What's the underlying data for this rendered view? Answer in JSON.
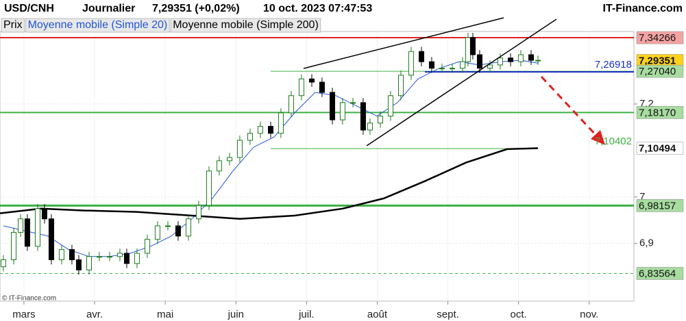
{
  "chart_data": {
    "type": "candlestick",
    "title": "USD/CNH",
    "period": "Journalier",
    "last_quote": "7,29351 (+0,02%)",
    "timestamp": "10 oct. 2023 07:47:53",
    "brand": "IT-Finance.com",
    "copyright": "© IT-Finance.com",
    "price_name": "Prix",
    "up_color": "#1a7a1a",
    "down_color": "#000000",
    "xlim": [
      2.661,
      11.633
    ],
    "xticks": [
      {
        "value": 3,
        "label": "mars"
      },
      {
        "value": 4,
        "label": "avr."
      },
      {
        "value": 5,
        "label": "mai"
      },
      {
        "value": 6,
        "label": "juin"
      },
      {
        "value": 7,
        "label": "juil."
      },
      {
        "value": 8,
        "label": "août"
      },
      {
        "value": 9,
        "label": "sept."
      },
      {
        "value": 10,
        "label": "oct."
      },
      {
        "value": 11,
        "label": "nov."
      }
    ],
    "ylim": [
      6.776,
      7.356
    ],
    "yticks": [
      {
        "value": 6.9,
        "label": "6,9"
      },
      7,
      {
        "value": 7.2,
        "label": "7,2"
      }
    ],
    "grid": true,
    "x": [
      2.709,
      2.855,
      2.952,
      3.048,
      3.194,
      3.291,
      3.388,
      3.533,
      3.679,
      3.776,
      3.922,
      4.067,
      4.213,
      4.358,
      4.455,
      4.6,
      4.746,
      4.891,
      5.037,
      5.182,
      5.328,
      5.473,
      5.619,
      5.764,
      5.91,
      6.055,
      6.201,
      6.346,
      6.492,
      6.637,
      6.783,
      6.928,
      7.074,
      7.219,
      7.365,
      7.51,
      7.656,
      7.801,
      7.898,
      8.044,
      8.189,
      8.335,
      8.48,
      8.626,
      8.771,
      8.917,
      9.062,
      9.208,
      9.285,
      9.353,
      9.45,
      9.596,
      9.741,
      9.887,
      10.032,
      10.178,
      10.275
    ],
    "open": [
      6.85,
      6.865,
      6.924,
      6.953,
      6.894,
      6.975,
      6.953,
      6.865,
      6.887,
      6.865,
      6.843,
      6.872,
      6.872,
      6.872,
      6.879,
      6.857,
      6.879,
      6.909,
      6.938,
      6.938,
      6.916,
      6.953,
      6.982,
      7.056,
      7.078,
      7.085,
      7.122,
      7.137,
      7.152,
      7.137,
      7.181,
      7.218,
      7.254,
      7.247,
      7.225,
      7.166,
      7.203,
      7.203,
      7.144,
      7.159,
      7.174,
      7.218,
      7.262,
      7.313,
      7.291,
      7.277,
      7.277,
      7.277,
      7.291,
      7.343,
      7.306,
      7.277,
      7.284,
      7.299,
      7.291,
      7.306,
      7.294
    ],
    "high": [
      6.875,
      6.934,
      6.963,
      6.963,
      6.985,
      6.985,
      6.963,
      6.897,
      6.897,
      6.875,
      6.882,
      6.882,
      6.882,
      6.889,
      6.889,
      6.889,
      6.919,
      6.948,
      6.948,
      6.948,
      6.963,
      6.992,
      7.066,
      7.088,
      7.095,
      7.132,
      7.147,
      7.162,
      7.162,
      7.191,
      7.228,
      7.264,
      7.264,
      7.257,
      7.235,
      7.213,
      7.213,
      7.213,
      7.169,
      7.184,
      7.228,
      7.272,
      7.323,
      7.323,
      7.301,
      7.287,
      7.287,
      7.301,
      7.353,
      7.353,
      7.316,
      7.294,
      7.309,
      7.309,
      7.316,
      7.316,
      7.304
    ],
    "low": [
      6.84,
      6.855,
      6.914,
      6.884,
      6.884,
      6.943,
      6.855,
      6.855,
      6.855,
      6.833,
      6.833,
      6.862,
      6.862,
      6.862,
      6.847,
      6.847,
      6.869,
      6.899,
      6.928,
      6.906,
      6.906,
      6.943,
      6.972,
      7.046,
      7.068,
      7.075,
      7.112,
      7.127,
      7.127,
      7.127,
      7.171,
      7.208,
      7.237,
      7.215,
      7.156,
      7.156,
      7.193,
      7.134,
      7.134,
      7.149,
      7.164,
      7.208,
      7.252,
      7.281,
      7.267,
      7.267,
      7.267,
      7.267,
      7.281,
      7.296,
      7.267,
      7.267,
      7.274,
      7.281,
      7.281,
      7.284,
      7.284
    ],
    "close": [
      6.865,
      6.924,
      6.953,
      6.894,
      6.975,
      6.953,
      6.865,
      6.887,
      6.865,
      6.843,
      6.872,
      6.872,
      6.872,
      6.879,
      6.857,
      6.879,
      6.909,
      6.938,
      6.938,
      6.916,
      6.953,
      6.982,
      7.056,
      7.078,
      7.085,
      7.122,
      7.137,
      7.152,
      7.137,
      7.181,
      7.218,
      7.254,
      7.247,
      7.225,
      7.166,
      7.203,
      7.203,
      7.144,
      7.159,
      7.174,
      7.218,
      7.262,
      7.313,
      7.291,
      7.277,
      7.277,
      7.277,
      7.291,
      7.343,
      7.306,
      7.277,
      7.284,
      7.299,
      7.291,
      7.306,
      7.294,
      7.294
    ],
    "series": [
      {
        "name": "Moyenne mobile (Simple 20)",
        "color": "#2255dd",
        "width": 1,
        "x": [
          2.709,
          3.339,
          3.63,
          3.921,
          4.212,
          4.503,
          4.794,
          5.085,
          5.376,
          5.667,
          5.958,
          6.249,
          6.54,
          6.831,
          7.122,
          7.413,
          7.704,
          7.995,
          8.286,
          8.577,
          8.868,
          9.159,
          9.45,
          9.741,
          10.032,
          10.275
        ],
        "values": [
          6.938,
          6.916,
          6.887,
          6.872,
          6.872,
          6.879,
          6.894,
          6.916,
          6.953,
          6.997,
          7.056,
          7.107,
          7.129,
          7.181,
          7.225,
          7.218,
          7.196,
          7.174,
          7.203,
          7.254,
          7.276,
          7.291,
          7.284,
          7.291,
          7.294,
          7.288
        ]
      },
      {
        "name": "Moyenne mobile (Simple 200)",
        "color": "#000000",
        "width": 2.5,
        "x": [
          2.661,
          3.242,
          3.824,
          4.6,
          5.376,
          6.055,
          6.831,
          7.51,
          8.092,
          8.674,
          9.256,
          9.838,
          10.275
        ],
        "values": [
          6.965,
          6.975,
          6.971,
          6.968,
          6.96,
          6.953,
          6.96,
          6.975,
          6.997,
          7.034,
          7.074,
          7.103,
          7.10494
        ]
      }
    ],
    "levels": [
      {
        "value": 7.34266,
        "label": "7,34266",
        "color": "#e02020",
        "box": "#f4a3a3",
        "width": 2,
        "style": "solid",
        "place": "axis"
      },
      {
        "value": 7.29351,
        "label": "7,29351",
        "color": "#000000",
        "box": "#ffd21a",
        "width": 0,
        "style": "none",
        "place": "axis",
        "bold": true
      },
      {
        "value": 7.2704,
        "label": "7,27040",
        "color": "#3cb043",
        "box": "#a8dca0",
        "width": 1,
        "style": "solid",
        "place": "axis",
        "x_from": 6.492
      },
      {
        "value": 7.26918,
        "label": "7,26918",
        "color": "#1a2fbf",
        "box": null,
        "width": 2,
        "style": "solid",
        "place": "inside",
        "x_from": 8.674
      },
      {
        "value": 7.1817,
        "label": "7,18170",
        "color": "#3cb043",
        "box": "#a8dca0",
        "width": 2,
        "style": "solid",
        "place": "axis"
      },
      {
        "value": 7.10402,
        "label": "7,10402",
        "color": "#3cb043",
        "box": null,
        "width": 1,
        "style": "solid",
        "place": "inside",
        "x_from": 6.492,
        "x_to": 10.275
      },
      {
        "value": 7.10494,
        "label": "7,10494",
        "color": "#000000",
        "box": "#ffffff",
        "width": 0,
        "style": "none",
        "place": "axis",
        "bold": true
      },
      {
        "value": 6.98157,
        "label": "6,98157",
        "color": "#3cb043",
        "box": "#a8dca0",
        "width": 3,
        "style": "solid",
        "place": "axis"
      },
      {
        "value": 6.83564,
        "label": "6,83564",
        "color": "#3cb043",
        "box": "#a8dca0",
        "width": 1,
        "style": "dashed",
        "place": "axis"
      }
    ]
  }
}
